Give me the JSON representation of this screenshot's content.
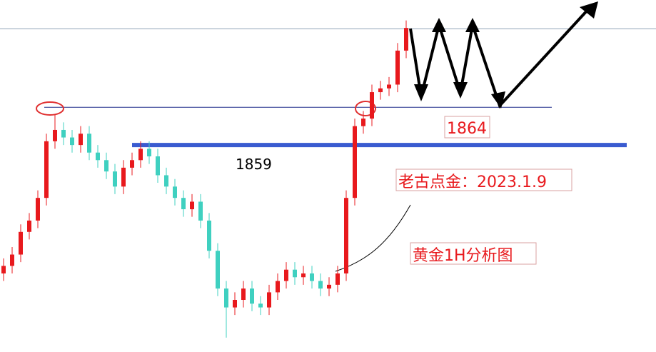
{
  "chart_data": {
    "type": "candlestick",
    "ylim": [
      1831.6,
      1878.2
    ],
    "up_color": "#e8191d",
    "down_color": "#3fd0c0",
    "open": [
      1842.0,
      1843.0,
      1844.5,
      1847.5,
      1849.0,
      1852.0,
      1859.5,
      1861.0,
      1860.0,
      1859.0,
      1860.5,
      1858.0,
      1857.0,
      1855.5,
      1853.5,
      1856.0,
      1857.0,
      1858.5,
      1857.5,
      1855.0,
      1853.5,
      1852.0,
      1850.5,
      1851.5,
      1849.0,
      1845.0,
      1840.0,
      1837.5,
      1838.5,
      1840.0,
      1838.0,
      1837.5,
      1839.5,
      1841.0,
      1842.5,
      1841.5,
      1842.0,
      1841.0,
      1840.0,
      1840.5,
      1842.0,
      1852.0,
      1861.5,
      1862.5,
      1866.0,
      1866.5,
      1867.0,
      1871.5
    ],
    "high": [
      1844,
      1845.5,
      1848.5,
      1850,
      1853,
      1860.5,
      1863,
      1862,
      1861,
      1861.5,
      1861.5,
      1859,
      1858,
      1856.5,
      1857,
      1858,
      1859.5,
      1859.5,
      1858.5,
      1856,
      1854.5,
      1853,
      1852.5,
      1852.5,
      1850,
      1846,
      1841,
      1839.5,
      1841,
      1841,
      1839,
      1840.5,
      1842,
      1843.5,
      1843.5,
      1843,
      1843,
      1842,
      1841.5,
      1843,
      1853,
      1862.5,
      1863.5,
      1867,
      1867.5,
      1868,
      1872.5,
      1875.5
    ],
    "low": [
      1841,
      1842,
      1843.5,
      1846.5,
      1848,
      1851,
      1858.5,
      1859,
      1858,
      1858,
      1857,
      1856,
      1854.5,
      1852.5,
      1852.5,
      1855,
      1856,
      1856.5,
      1854,
      1852.5,
      1851,
      1849.5,
      1849.5,
      1848,
      1844,
      1839,
      1833.5,
      1836.5,
      1837.5,
      1837,
      1836.5,
      1836.5,
      1838.5,
      1840,
      1840.5,
      1840.5,
      1840,
      1839,
      1839,
      1839.5,
      1841,
      1851,
      1860.5,
      1861.5,
      1865,
      1865.5,
      1866,
      1870.5
    ],
    "close": [
      1843.0,
      1844.5,
      1847.5,
      1849.0,
      1852.0,
      1859.5,
      1861.0,
      1860.0,
      1859.0,
      1860.5,
      1858.0,
      1857.0,
      1855.5,
      1853.5,
      1856.0,
      1857.0,
      1858.5,
      1857.5,
      1855.0,
      1853.5,
      1852.0,
      1850.5,
      1851.5,
      1849.0,
      1845.0,
      1840.0,
      1837.5,
      1838.5,
      1840.0,
      1838.0,
      1837.5,
      1839.5,
      1841.0,
      1842.5,
      1841.5,
      1842.0,
      1841.0,
      1840.0,
      1840.5,
      1842.0,
      1852.0,
      1861.5,
      1862.5,
      1866.0,
      1866.5,
      1867.0,
      1871.5,
      1874.5
    ],
    "levels": [
      1874.4,
      1864,
      1859
    ],
    "annotations": [
      "老古点金：2023.1.9",
      "黄金1H分析图"
    ]
  }
}
